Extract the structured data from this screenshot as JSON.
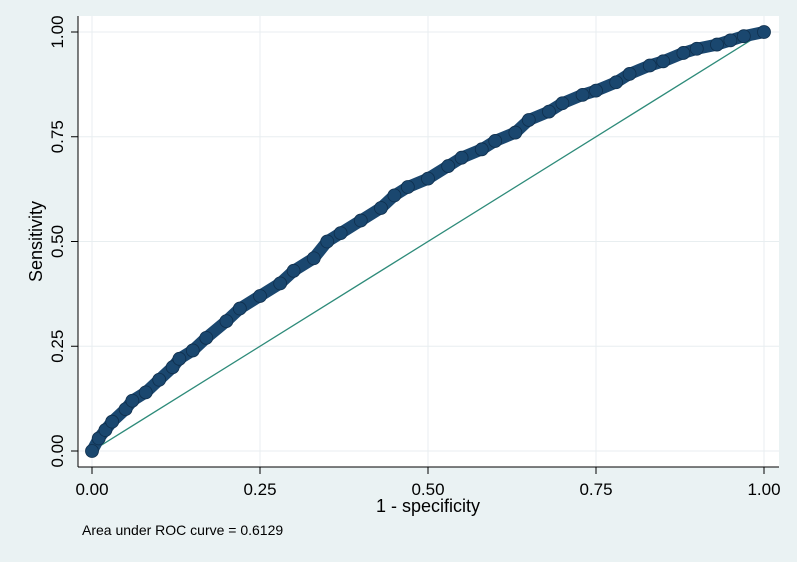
{
  "chart_data": {
    "type": "scatter",
    "title": "",
    "xlabel": "1 - specificity",
    "ylabel": "Sensitivity",
    "xlim": [
      0,
      1
    ],
    "ylim": [
      0,
      1
    ],
    "x_ticks": [
      "0.00",
      "0.25",
      "0.50",
      "0.75",
      "1.00"
    ],
    "y_ticks": [
      "0.00",
      "0.25",
      "0.50",
      "0.75",
      "1.00"
    ],
    "grid": true,
    "note": "Area under ROC curve = 0.6129",
    "colors": {
      "background": "#eaf2f3",
      "plot_background": "#ffffff",
      "grid": "#e8eef0",
      "roc_marker": "#1a476f",
      "reference_line": "#2e8b7a"
    },
    "series": [
      {
        "marker": "circle",
        "x": [
          0.0,
          0.01,
          0.02,
          0.03,
          0.05,
          0.06,
          0.08,
          0.1,
          0.12,
          0.13,
          0.15,
          0.17,
          0.2,
          0.22,
          0.25,
          0.28,
          0.3,
          0.33,
          0.35,
          0.37,
          0.4,
          0.43,
          0.45,
          0.47,
          0.5,
          0.53,
          0.55,
          0.58,
          0.6,
          0.63,
          0.65,
          0.68,
          0.7,
          0.73,
          0.75,
          0.78,
          0.8,
          0.83,
          0.85,
          0.88,
          0.9,
          0.93,
          0.95,
          0.97,
          1.0
        ],
        "y": [
          0.0,
          0.03,
          0.05,
          0.07,
          0.1,
          0.12,
          0.14,
          0.17,
          0.2,
          0.22,
          0.24,
          0.27,
          0.31,
          0.34,
          0.37,
          0.4,
          0.43,
          0.46,
          0.5,
          0.52,
          0.55,
          0.58,
          0.61,
          0.63,
          0.65,
          0.68,
          0.7,
          0.72,
          0.74,
          0.76,
          0.79,
          0.81,
          0.83,
          0.85,
          0.86,
          0.88,
          0.9,
          0.92,
          0.93,
          0.95,
          0.96,
          0.97,
          0.98,
          0.99,
          1.0
        ]
      },
      {
        "type": "line",
        "x": [
          0,
          1
        ],
        "y": [
          0,
          1
        ]
      }
    ]
  }
}
